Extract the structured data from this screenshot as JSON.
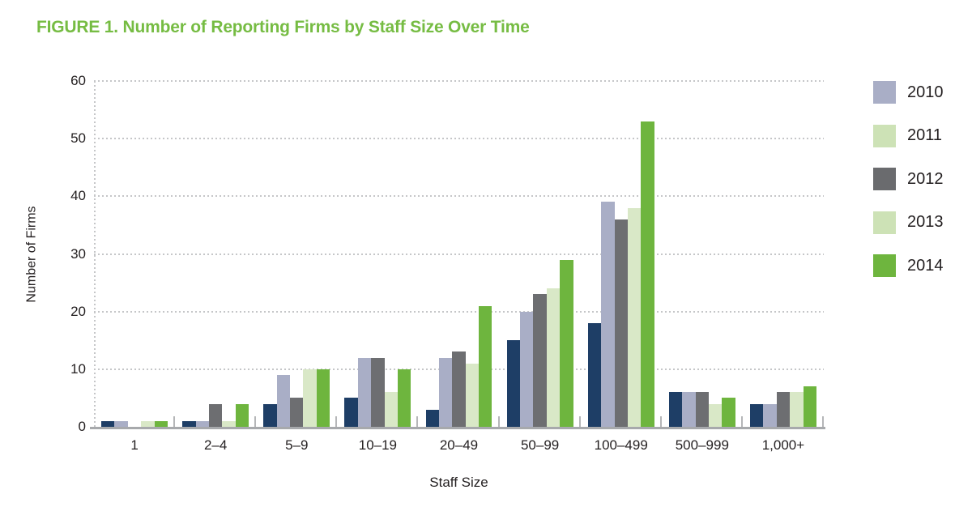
{
  "figure": {
    "title": "FIGURE 1. Number of Reporting Firms by Staff Size Over Time",
    "title_color": "#76bc43"
  },
  "chart_data": {
    "type": "bar",
    "title": "FIGURE 1. Number of Reporting Firms by Staff Size Over Time",
    "xlabel": "Staff Size",
    "ylabel": "Number of Firms",
    "ylim": [
      0,
      60
    ],
    "yticks": [
      0,
      10,
      20,
      30,
      40,
      50,
      60
    ],
    "grid": "horizontal dotted lines, dotted vertical y-axis",
    "legend_position": "right",
    "categories": [
      "1",
      "2–4",
      "5–9",
      "10–19",
      "20–49",
      "50–99",
      "100–499",
      "500–999",
      "1,000+"
    ],
    "series": [
      {
        "name": "2010",
        "bar_color": "#1e3e66",
        "legend_color": "#a9aec6",
        "values": [
          1,
          1,
          4,
          5,
          3,
          15,
          18,
          6,
          4
        ]
      },
      {
        "name": "2011",
        "bar_color": "#a9aec6",
        "legend_color": "#cde2b6",
        "values": [
          1,
          1,
          9,
          12,
          12,
          20,
          39,
          6,
          4
        ]
      },
      {
        "name": "2012",
        "bar_color": "#6d6e71",
        "legend_color": "#6a6b6e",
        "values": [
          0,
          4,
          5,
          12,
          13,
          23,
          36,
          6,
          6
        ]
      },
      {
        "name": "2013",
        "bar_color": "#d9e8c7",
        "legend_color": "#cde2b6",
        "values": [
          1,
          1,
          10,
          6,
          11,
          24,
          38,
          4,
          6
        ]
      },
      {
        "name": "2014",
        "bar_color": "#6eb53e",
        "legend_color": "#6eb53e",
        "values": [
          1,
          4,
          10,
          10,
          21,
          29,
          53,
          5,
          7
        ]
      }
    ],
    "colors": {
      "axis_line": "#a7a9ac",
      "gridline": "#c5c6c8",
      "tick_mark": "#b5b6b8",
      "text": "#231f20"
    }
  }
}
